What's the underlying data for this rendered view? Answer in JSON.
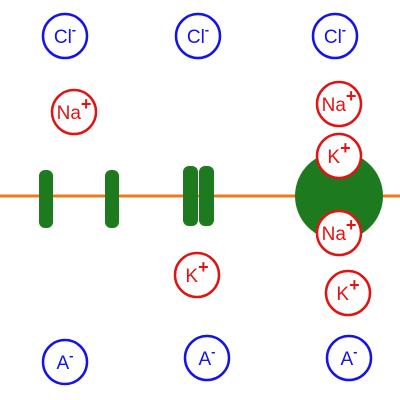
{
  "colors": {
    "membrane": "#f07a1a",
    "channel": "#1e7a1e",
    "channel_edge": "#0f4f0f",
    "anion": "#1414e6",
    "cation": "#e01414"
  },
  "ions": {
    "chloride": {
      "symbol": "Cl",
      "charge": "-"
    },
    "sodium": {
      "symbol": "Na",
      "charge": "+"
    },
    "potassium": {
      "symbol": "K",
      "charge": "+"
    },
    "anion": {
      "symbol": "A",
      "charge": "-"
    }
  },
  "panels": [
    {
      "channel": "open-gap-channel",
      "ions": [
        "chloride",
        "sodium",
        "anion"
      ]
    },
    {
      "channel": "closed-channel",
      "ions": [
        "chloride",
        "potassium",
        "anion"
      ]
    },
    {
      "channel": "sodium-potassium-pump",
      "ions": [
        "chloride",
        "sodium",
        "potassium",
        "sodium",
        "potassium",
        "anion"
      ]
    }
  ]
}
